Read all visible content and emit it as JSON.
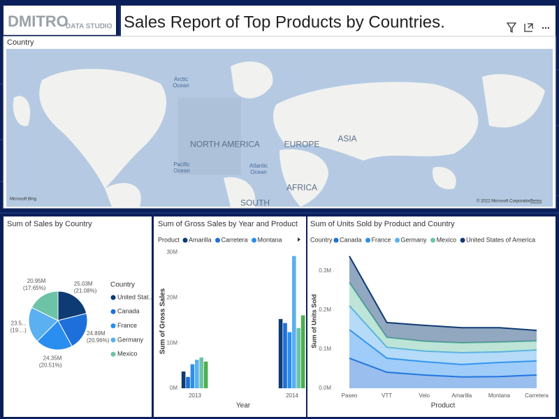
{
  "header": {
    "brand": "DMITRO",
    "brand_sub": "DATA STUDIO",
    "title": "Sales Report of Top Products by Countries."
  },
  "map": {
    "title": "Country",
    "labels": [
      "Arctic Ocean",
      "NORTH AMERICA",
      "Pacific Ocean",
      "Atlantic Ocean",
      "EUROPE",
      "ASIA",
      "AFRICA",
      "SOUTH"
    ],
    "attribution": "Microsoft Bing",
    "copyright": "© 2022 Microsoft Corporation",
    "terms": "Terms"
  },
  "chart_data": [
    {
      "type": "pie",
      "title": "Sum of Sales by Country",
      "legend_title": "Country",
      "categories": [
        "United Stat...",
        "Canada",
        "France",
        "Germany",
        "Mexico"
      ],
      "values": [
        25.03,
        24.89,
        24.35,
        23.51,
        20.95
      ],
      "value_labels": [
        "25.03M",
        "24.89M",
        "24.35M",
        "23.5...",
        "20.95M"
      ],
      "percentages": [
        21.08,
        20.96,
        20.51,
        19.8,
        17.65
      ],
      "percentage_labels": [
        "(21.08%)",
        "(20.96%)",
        "(20.51%)",
        "(19....)",
        "(17.65%)"
      ],
      "colors": [
        "#0e3b73",
        "#1e6fd9",
        "#2a8ef0",
        "#5ab0f0",
        "#6cc3a6"
      ]
    },
    {
      "type": "bar",
      "title": "Sum of Gross Sales by Year and Product",
      "legend_title": "Product",
      "x_label": "Year",
      "y_label": "Sum of Gross Sales",
      "categories": [
        "2013",
        "2014"
      ],
      "series": [
        {
          "name": "Amarilla",
          "color": "#0e3b73",
          "values": [
            3.7,
            15.3
          ]
        },
        {
          "name": "Carretera",
          "color": "#1e6fd9",
          "values": [
            2.5,
            14.4
          ]
        },
        {
          "name": "Montana",
          "color": "#2a8ef0",
          "values": [
            5.3,
            12.4
          ]
        },
        {
          "name": null,
          "color": "#5ab0f0",
          "values": [
            6.3,
            29.2
          ]
        },
        {
          "name": null,
          "color": "#6cc3a6",
          "values": [
            6.8,
            13.3
          ]
        },
        {
          "name": null,
          "color": "#4caf50",
          "values": [
            5.9,
            16.1
          ]
        }
      ],
      "ylim": [
        0,
        31
      ],
      "yticks": [
        {
          "value": 0,
          "label": "0M"
        },
        {
          "value": 10,
          "label": "10M"
        },
        {
          "value": 20,
          "label": "20M"
        },
        {
          "value": 30,
          "label": "30M"
        }
      ]
    },
    {
      "type": "area",
      "stacked": true,
      "title": "Sum of Units Sold by Product and Country",
      "legend_title": "Country",
      "x_label": "Product",
      "y_label": "Sum of Units Sold",
      "categories": [
        "Paseo",
        "VTT",
        "Velo",
        "Amarilla",
        "Montana",
        "Carretera"
      ],
      "series": [
        {
          "name": "Canada",
          "color": "#1e6fd9",
          "values": [
            0.077,
            0.041,
            0.034,
            0.029,
            0.03,
            0.034
          ]
        },
        {
          "name": "France",
          "color": "#2a8ef0",
          "values": [
            0.073,
            0.036,
            0.034,
            0.032,
            0.036,
            0.036
          ]
        },
        {
          "name": "Germany",
          "color": "#5ab0f0",
          "values": [
            0.061,
            0.028,
            0.027,
            0.03,
            0.027,
            0.028
          ]
        },
        {
          "name": "Mexico",
          "color": "#6cc3a6",
          "values": [
            0.059,
            0.025,
            0.025,
            0.025,
            0.025,
            0.023
          ]
        },
        {
          "name": "United States of America",
          "color": "#0e3b73",
          "values": [
            0.068,
            0.038,
            0.041,
            0.039,
            0.037,
            0.027
          ]
        }
      ],
      "ylim": [
        0,
        0.35
      ],
      "yticks": [
        {
          "value": 0,
          "label": "0.0M"
        },
        {
          "value": 0.1,
          "label": "0.1M"
        },
        {
          "value": 0.2,
          "label": "0.2M"
        },
        {
          "value": 0.3,
          "label": "0.3M"
        }
      ]
    }
  ]
}
